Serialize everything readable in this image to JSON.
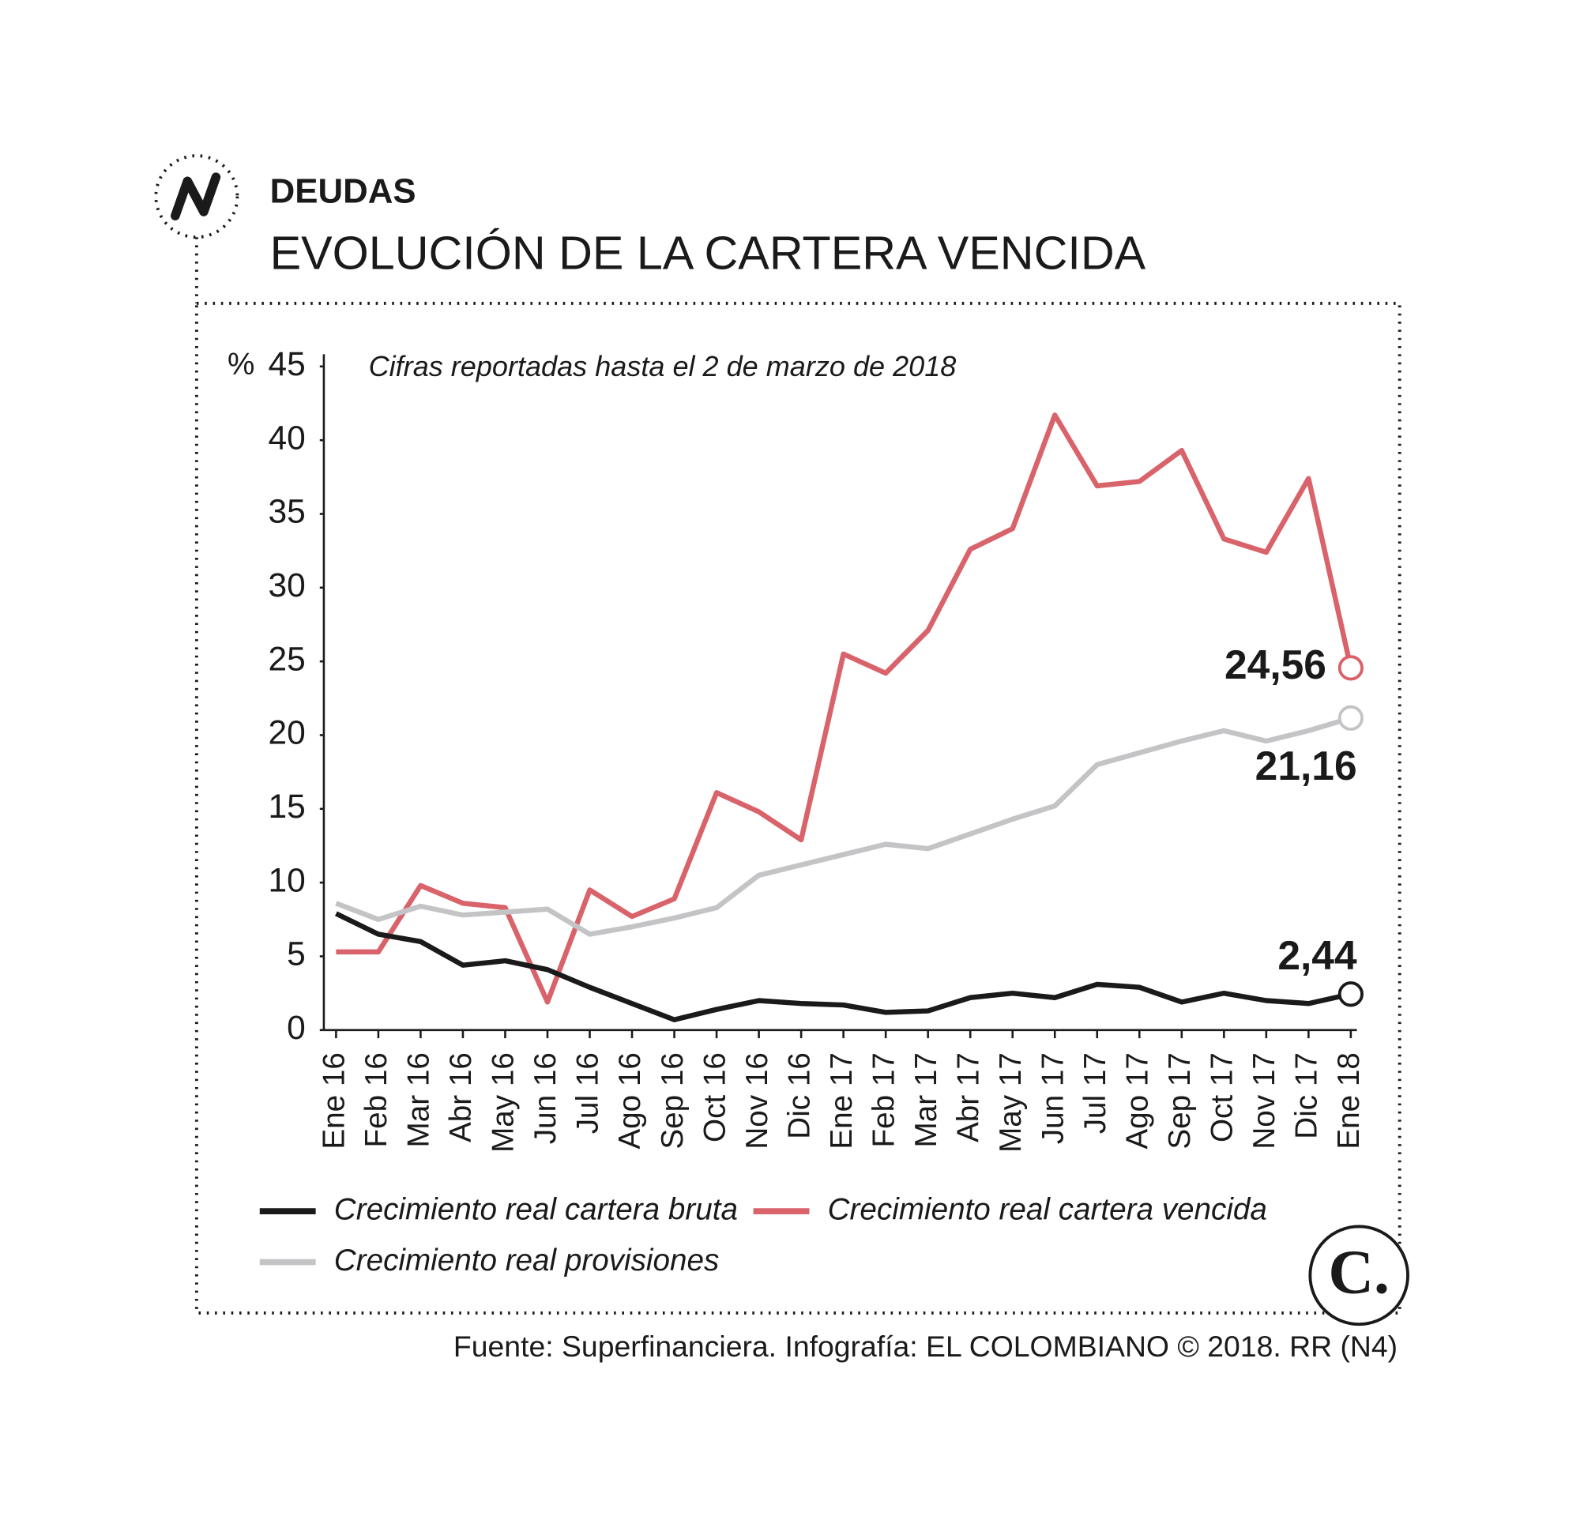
{
  "kicker": "DEUDAS",
  "logo_text": "C.",
  "source": "Fuente: Superfinanciera. Infografía: EL COLOMBIANO © 2018. RR (N4)",
  "chart_data": {
    "type": "line",
    "title": "EVOLUCIÓN DE LA CARTERA VENCIDA",
    "subtitle": "Cifras reportadas hasta el 2 de marzo de 2018",
    "y_unit": "%",
    "categories": [
      "Ene 16",
      "Feb 16",
      "Mar 16",
      "Abr 16",
      "May 16",
      "Jun 16",
      "Jul 16",
      "Ago 16",
      "Sep 16",
      "Oct 16",
      "Nov 16",
      "Dic 16",
      "Ene 17",
      "Feb 17",
      "Mar 17",
      "Abr 17",
      "May 17",
      "Jun 17",
      "Jul 17",
      "Ago 17",
      "Sep 17",
      "Oct 17",
      "Nov 17",
      "Dic 17",
      "Ene 18"
    ],
    "ylim": [
      0,
      45
    ],
    "yticks": [
      0,
      5,
      10,
      15,
      20,
      25,
      30,
      35,
      40,
      45
    ],
    "series": [
      {
        "name": "Crecimiento real cartera bruta",
        "color": "#1a1a1a",
        "values": [
          7.9,
          6.5,
          6.0,
          4.4,
          4.7,
          4.1,
          2.9,
          1.8,
          0.7,
          1.4,
          2.0,
          1.8,
          1.7,
          1.2,
          1.3,
          2.2,
          2.5,
          2.2,
          3.1,
          2.9,
          1.9,
          2.5,
          2.0,
          1.8,
          2.44
        ],
        "value_labels": [
          null,
          null,
          null,
          null,
          null,
          null,
          null,
          null,
          null,
          null,
          null,
          null,
          null,
          null,
          null,
          null,
          null,
          null,
          null,
          null,
          null,
          null,
          null,
          null,
          "2,44"
        ]
      },
      {
        "name": "Crecimiento real cartera vencida",
        "color": "#d9636b",
        "values": [
          5.3,
          5.3,
          9.8,
          8.6,
          8.3,
          1.9,
          9.5,
          7.7,
          8.9,
          16.1,
          14.8,
          12.9,
          25.5,
          24.2,
          27.1,
          32.6,
          34.0,
          41.7,
          36.9,
          37.2,
          39.3,
          33.3,
          32.4,
          37.4,
          24.56
        ],
        "value_labels": [
          null,
          null,
          null,
          null,
          null,
          null,
          null,
          null,
          null,
          null,
          null,
          null,
          null,
          null,
          null,
          null,
          null,
          null,
          null,
          null,
          null,
          null,
          null,
          null,
          "24,56"
        ]
      },
      {
        "name": "Crecimiento real provisiones",
        "color": "#c4c4c6",
        "values": [
          8.6,
          7.5,
          8.4,
          7.8,
          8.0,
          8.2,
          6.5,
          7.0,
          7.6,
          8.3,
          10.5,
          11.2,
          11.9,
          12.6,
          12.3,
          13.3,
          14.3,
          15.2,
          18.0,
          18.8,
          19.6,
          20.3,
          19.6,
          20.3,
          21.16
        ],
        "value_labels": [
          null,
          null,
          null,
          null,
          null,
          null,
          null,
          null,
          null,
          null,
          null,
          null,
          null,
          null,
          null,
          null,
          null,
          null,
          null,
          null,
          null,
          null,
          null,
          null,
          "21,16"
        ]
      }
    ]
  }
}
